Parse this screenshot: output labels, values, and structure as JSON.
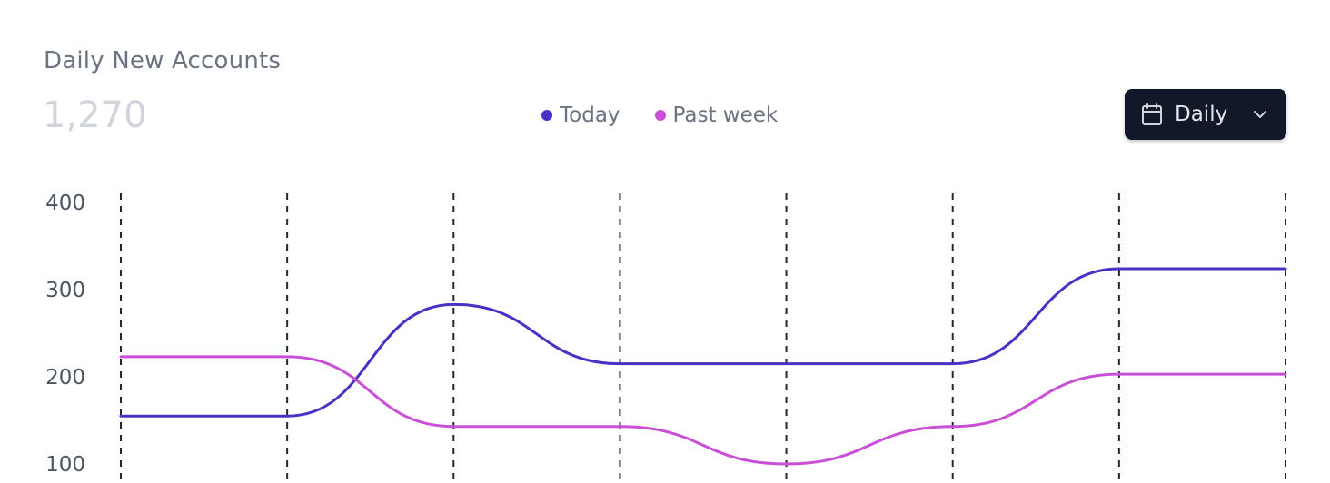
{
  "header": {
    "title": "Daily New Accounts",
    "metric": "1,270"
  },
  "dropdown": {
    "icon": "calendar-icon",
    "label": "Daily",
    "chevron": "chevron-down-icon"
  },
  "colors": {
    "today": "#4c2fc4",
    "past_week": "#c94fd6",
    "grid": "#1f2937",
    "dropdown_bg": "#111827"
  },
  "chart_data": {
    "type": "line",
    "x": [
      0,
      1,
      2,
      3,
      4,
      5,
      6,
      7
    ],
    "series": [
      {
        "name": "Today",
        "values": [
          155,
          155,
          283,
          215,
          215,
          215,
          324,
          324
        ]
      },
      {
        "name": "Past week",
        "values": [
          223,
          223,
          143,
          143,
          100,
          143,
          203,
          203
        ]
      }
    ],
    "ylim": [
      100,
      400
    ],
    "yticks": [
      100,
      200,
      300,
      400
    ],
    "grid": "vertical-dashed",
    "legend_position": "top-center",
    "legend": [
      "Today",
      "Past week"
    ]
  }
}
